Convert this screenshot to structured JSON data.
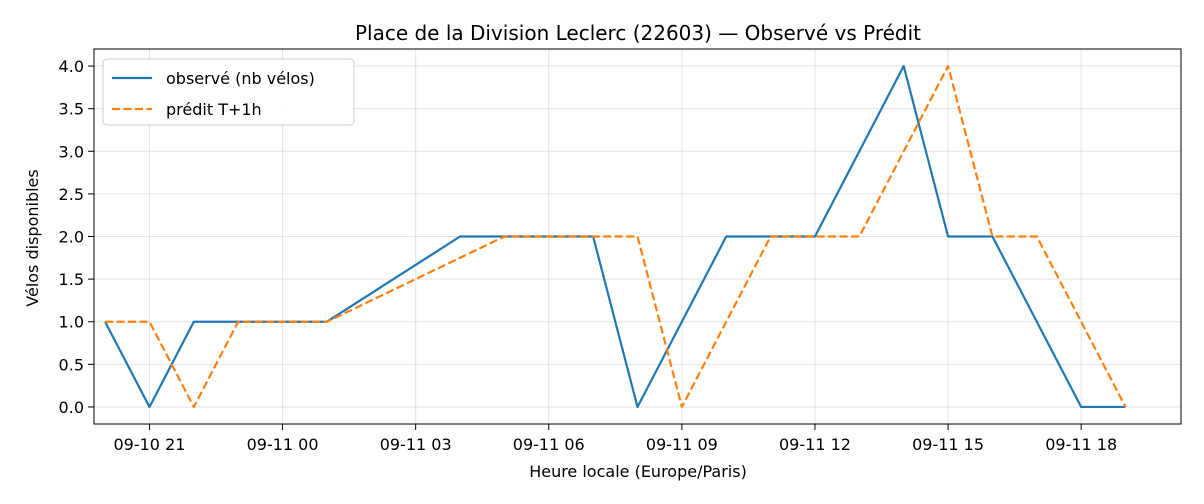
{
  "chart_data": {
    "type": "line",
    "title": "Place de la Division Leclerc (22603) — Observé vs Prédit",
    "xlabel": "Heure locale (Europe/Paris)",
    "ylabel": "Vélos disponibles",
    "x_ticks": [
      "09-10 21",
      "09-11 00",
      "09-11 03",
      "09-11 06",
      "09-11 09",
      "09-11 12",
      "09-11 15",
      "09-11 18"
    ],
    "y_ticks": [
      "0.0",
      "0.5",
      "1.0",
      "1.5",
      "2.0",
      "2.5",
      "3.0",
      "3.5",
      "4.0"
    ],
    "ylim": [
      -0.2,
      4.2
    ],
    "xlim": [
      "2024-09-10 19:45",
      "2024-09-11 20:15"
    ],
    "grid": true,
    "legend_position": "top-left",
    "series": [
      {
        "name": "observé (nb vélos)",
        "color": "#1f77b4",
        "style": "solid",
        "points": [
          [
            "2024-09-10 20:00",
            1
          ],
          [
            "2024-09-10 21:00",
            0
          ],
          [
            "2024-09-10 22:00",
            1
          ],
          [
            "2024-09-10 23:00",
            1
          ],
          [
            "2024-09-11 00:00",
            1
          ],
          [
            "2024-09-11 01:00",
            1
          ],
          [
            "2024-09-11 04:00",
            2
          ],
          [
            "2024-09-11 05:00",
            2
          ],
          [
            "2024-09-11 06:00",
            2
          ],
          [
            "2024-09-11 07:00",
            2
          ],
          [
            "2024-09-11 08:00",
            0
          ],
          [
            "2024-09-11 10:00",
            2
          ],
          [
            "2024-09-11 11:00",
            2
          ],
          [
            "2024-09-11 12:00",
            2
          ],
          [
            "2024-09-11 14:00",
            4
          ],
          [
            "2024-09-11 15:00",
            2
          ],
          [
            "2024-09-11 16:00",
            2
          ],
          [
            "2024-09-11 18:00",
            0
          ],
          [
            "2024-09-11 19:00",
            0
          ]
        ]
      },
      {
        "name": "prédit T+1h",
        "color": "#ff7f0e",
        "style": "dashed",
        "points": [
          [
            "2024-09-10 20:00",
            1
          ],
          [
            "2024-09-10 21:00",
            1
          ],
          [
            "2024-09-10 22:00",
            0
          ],
          [
            "2024-09-10 23:00",
            1
          ],
          [
            "2024-09-11 00:00",
            1
          ],
          [
            "2024-09-11 01:00",
            1
          ],
          [
            "2024-09-11 05:00",
            2
          ],
          [
            "2024-09-11 06:00",
            2
          ],
          [
            "2024-09-11 07:00",
            2
          ],
          [
            "2024-09-11 08:00",
            2
          ],
          [
            "2024-09-11 09:00",
            0
          ],
          [
            "2024-09-11 11:00",
            2
          ],
          [
            "2024-09-11 12:00",
            2
          ],
          [
            "2024-09-11 13:00",
            2
          ],
          [
            "2024-09-11 15:00",
            4
          ],
          [
            "2024-09-11 16:00",
            2
          ],
          [
            "2024-09-11 17:00",
            2
          ],
          [
            "2024-09-11 19:00",
            0
          ]
        ]
      }
    ]
  }
}
